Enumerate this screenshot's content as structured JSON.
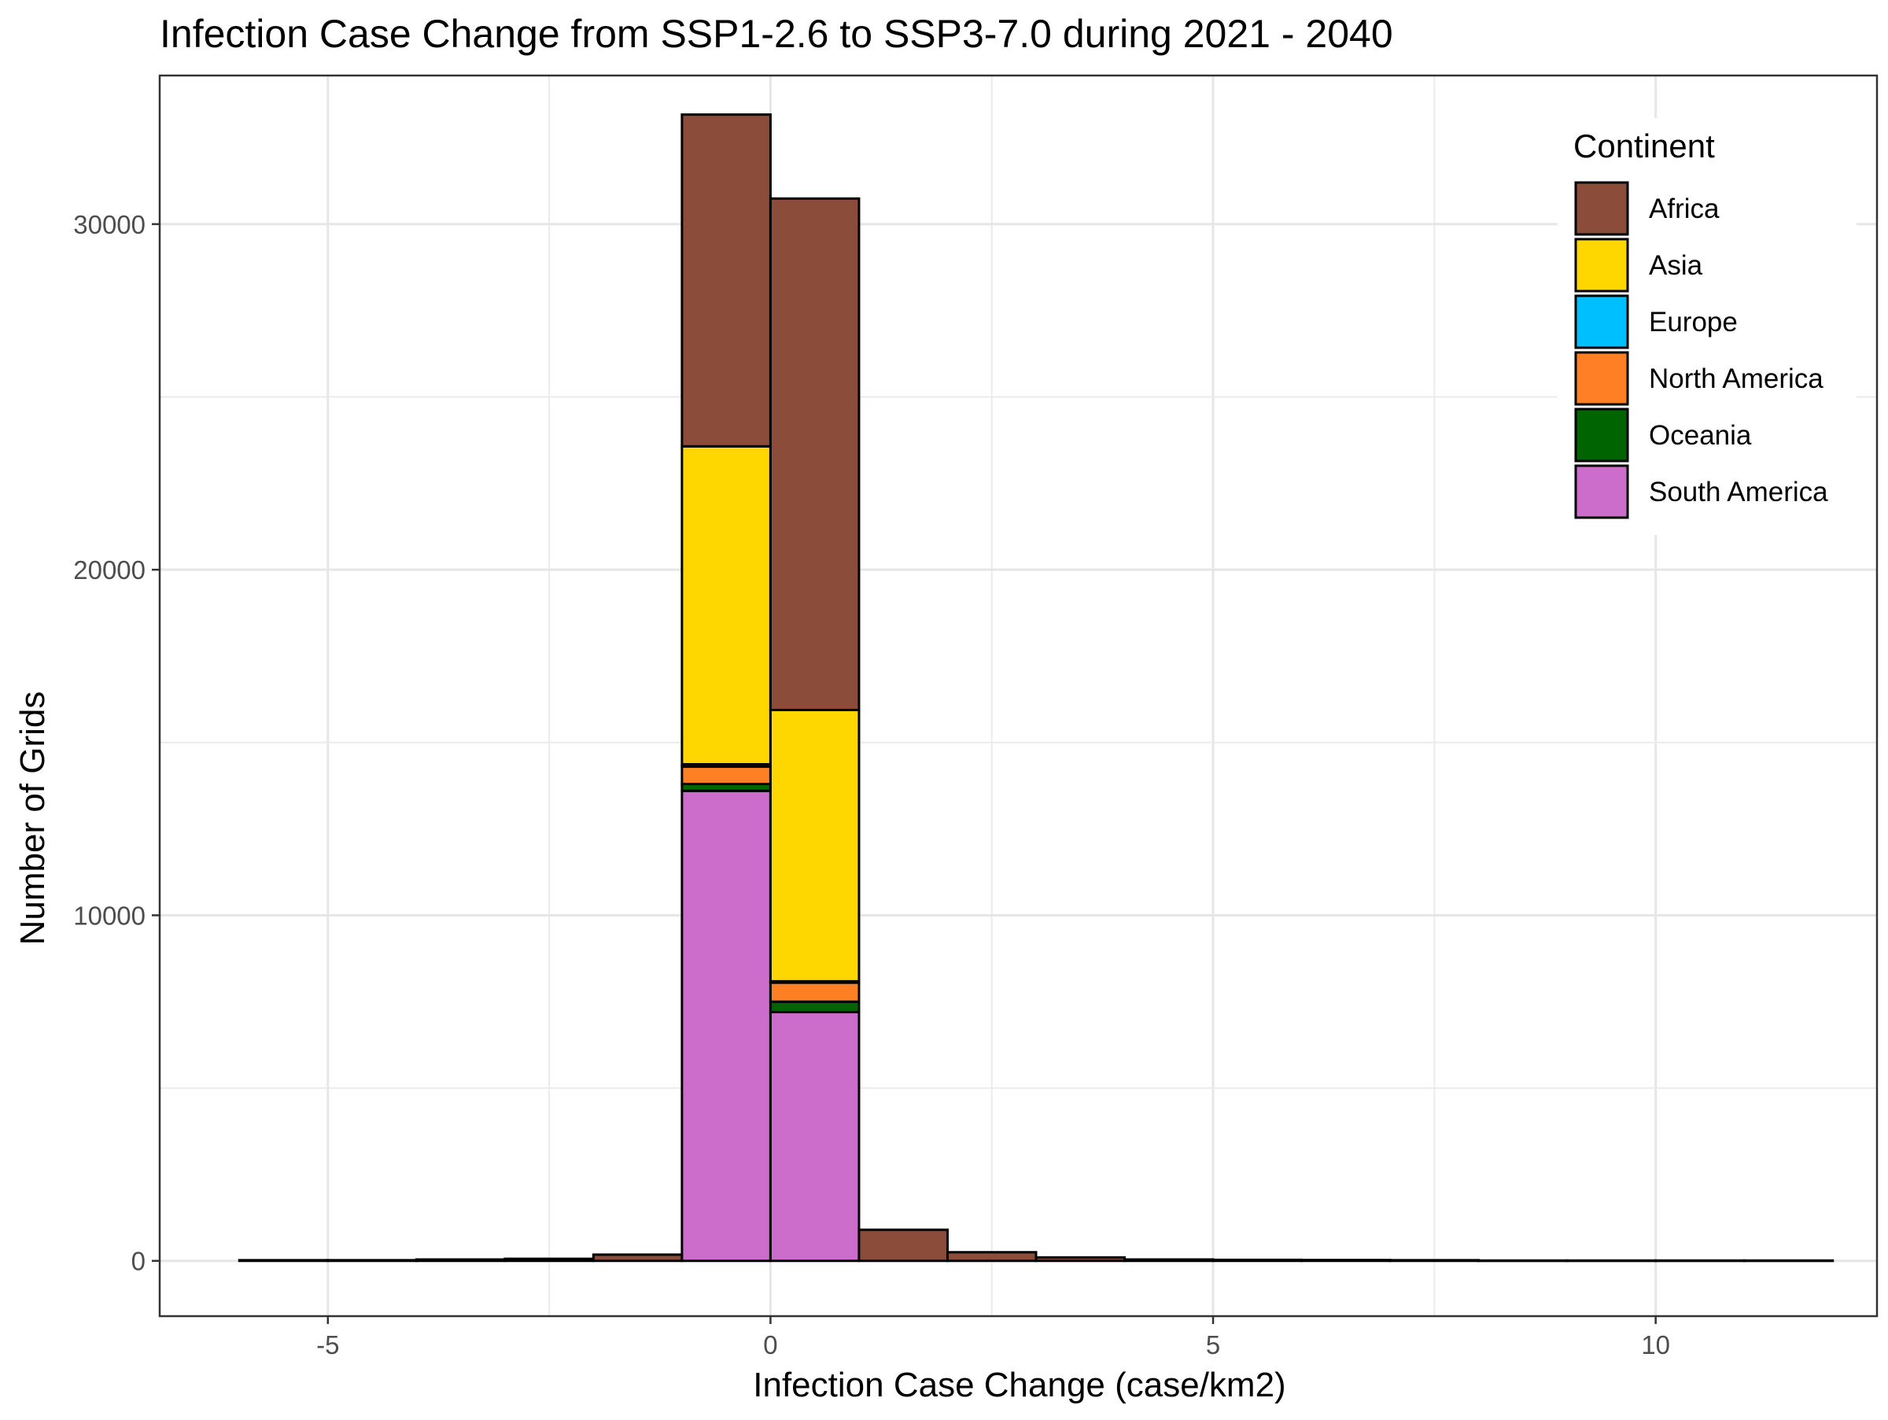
{
  "chart_data": {
    "type": "bar",
    "subtype": "stacked-histogram",
    "title": "Infection Case Change from SSP1-2.6 to SSP3-7.0 during 2021 - 2040",
    "xlabel": "Infection Case Change (case/km2)",
    "ylabel": "Number of Grids",
    "xlim": [
      -6.9,
      12.5
    ],
    "ylim": [
      -1600,
      34300
    ],
    "x_ticks": [
      -5,
      0,
      5,
      10
    ],
    "x_tick_labels": [
      "-5",
      "0",
      "5",
      "10"
    ],
    "y_ticks": [
      0,
      10000,
      20000,
      30000
    ],
    "y_tick_labels": [
      "0",
      "10000",
      "20000",
      "30000"
    ],
    "grid": true,
    "legend": {
      "title": "Continent",
      "placement": "top-right",
      "entries": [
        "Africa",
        "Asia",
        "Europe",
        "North America",
        "Oceania",
        "South America"
      ]
    },
    "colors": {
      "Africa": "#8B4C39",
      "Asia": "#FFD700",
      "Europe": "#00BFFF",
      "North America": "#FF7F24",
      "Oceania": "#006400",
      "South America": "#CC6CCB"
    },
    "stack_order_bottom_to_top": [
      "South America",
      "Oceania",
      "North America",
      "Europe",
      "Asia",
      "Africa"
    ],
    "bins": [
      {
        "x0": -6,
        "x1": -5,
        "counts": {
          "Africa": 20
        }
      },
      {
        "x0": -5,
        "x1": -4,
        "counts": {
          "Africa": 20
        }
      },
      {
        "x0": -4,
        "x1": -3,
        "counts": {
          "Africa": 40
        }
      },
      {
        "x0": -3,
        "x1": -2,
        "counts": {
          "Africa": 60
        }
      },
      {
        "x0": -2,
        "x1": -1,
        "counts": {
          "Africa": 180
        }
      },
      {
        "x0": -1,
        "x1": 0,
        "counts": {
          "South America": 13600,
          "Oceania": 200,
          "North America": 500,
          "Europe": 70,
          "Asia": 9200,
          "Africa": 9600
        }
      },
      {
        "x0": 0,
        "x1": 1,
        "counts": {
          "South America": 7200,
          "Oceania": 300,
          "North America": 550,
          "Europe": 40,
          "Asia": 7850,
          "Africa": 14800
        }
      },
      {
        "x0": 1,
        "x1": 2,
        "counts": {
          "Africa": 900
        }
      },
      {
        "x0": 2,
        "x1": 3,
        "counts": {
          "Africa": 250
        }
      },
      {
        "x0": 3,
        "x1": 4,
        "counts": {
          "Africa": 100
        }
      },
      {
        "x0": 4,
        "x1": 5,
        "counts": {
          "Africa": 40
        }
      },
      {
        "x0": 5,
        "x1": 6,
        "counts": {
          "Africa": 30
        }
      },
      {
        "x0": 6,
        "x1": 7,
        "counts": {
          "Africa": 25
        }
      },
      {
        "x0": 7,
        "x1": 8,
        "counts": {
          "Africa": 20
        }
      },
      {
        "x0": 8,
        "x1": 9,
        "counts": {
          "Africa": 10
        }
      },
      {
        "x0": 9,
        "x1": 10,
        "counts": {
          "Africa": 10
        }
      },
      {
        "x0": 10,
        "x1": 11,
        "counts": {
          "Africa": 10
        }
      },
      {
        "x0": 11,
        "x1": 12,
        "counts": {
          "Africa": 10
        }
      }
    ]
  }
}
